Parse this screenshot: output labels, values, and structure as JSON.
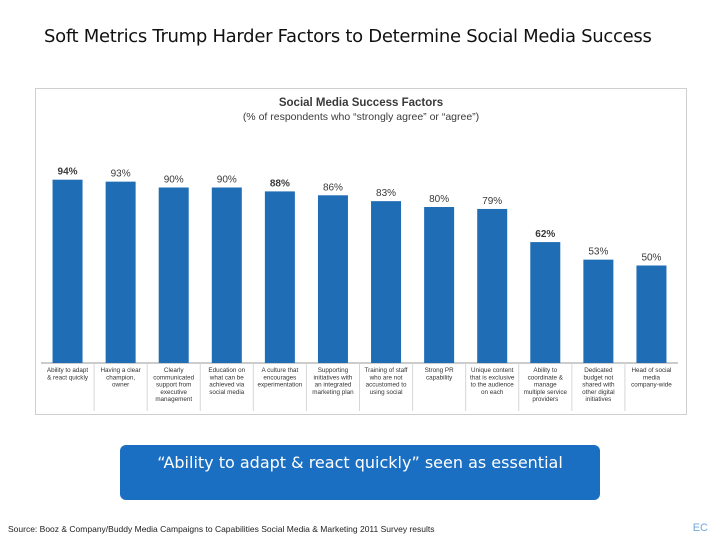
{
  "slide": {
    "title": "Soft Metrics Trump Harder Factors to Determine Social Media Success",
    "callout": "“Ability to adapt & react quickly” seen as essential",
    "source": "Source: Booz & Company/Buddy Media Campaigns to Capabilities Social Media & Marketing 2011 Survey results",
    "corner_mark": "EC"
  },
  "colors": {
    "bar": "#1f6db5",
    "callout": "#1b6fc2",
    "text": "#3a3a3a"
  },
  "chart_data": {
    "type": "bar",
    "title": "Social Media Success Factors",
    "subtitle": "(% of respondents who “strongly agree” or “agree”)",
    "xlabel": "",
    "ylabel": "",
    "ylim": [
      0,
      100
    ],
    "grid": false,
    "categories": [
      [
        "Ability to adapt",
        "& react quickly"
      ],
      [
        "Having a clear",
        "champion,",
        "owner"
      ],
      [
        "Clearly",
        "communicated",
        "support from",
        "executive",
        "management"
      ],
      [
        "Education on",
        "what can be",
        "achieved via",
        "social media"
      ],
      [
        "A culture that",
        "encourages",
        "experimentation"
      ],
      [
        "Supporting",
        "initiatives with",
        "an integrated",
        "marketing plan"
      ],
      [
        "Training of staff",
        "who are not",
        "accustomed to",
        "using social"
      ],
      [
        "Strong PR",
        "capability"
      ],
      [
        "Unique content",
        "that is exclusive",
        "to the audience",
        "on each"
      ],
      [
        "Ability to",
        "coordinate &",
        "manage",
        "multiple service",
        "providers"
      ],
      [
        "Dedicated",
        "budget not",
        "shared with",
        "other digital",
        "initiatives"
      ],
      [
        "Head of social",
        "media",
        "company-wide"
      ]
    ],
    "values": [
      94,
      93,
      90,
      90,
      88,
      86,
      83,
      80,
      79,
      62,
      53,
      50
    ],
    "data_labels": [
      "94%",
      "93%",
      "90%",
      "90%",
      "88%",
      "86%",
      "83%",
      "80%",
      "79%",
      "62%",
      "53%",
      "50%"
    ],
    "bold_labels": [
      true,
      false,
      false,
      false,
      true,
      false,
      false,
      false,
      false,
      true,
      false,
      false
    ]
  }
}
